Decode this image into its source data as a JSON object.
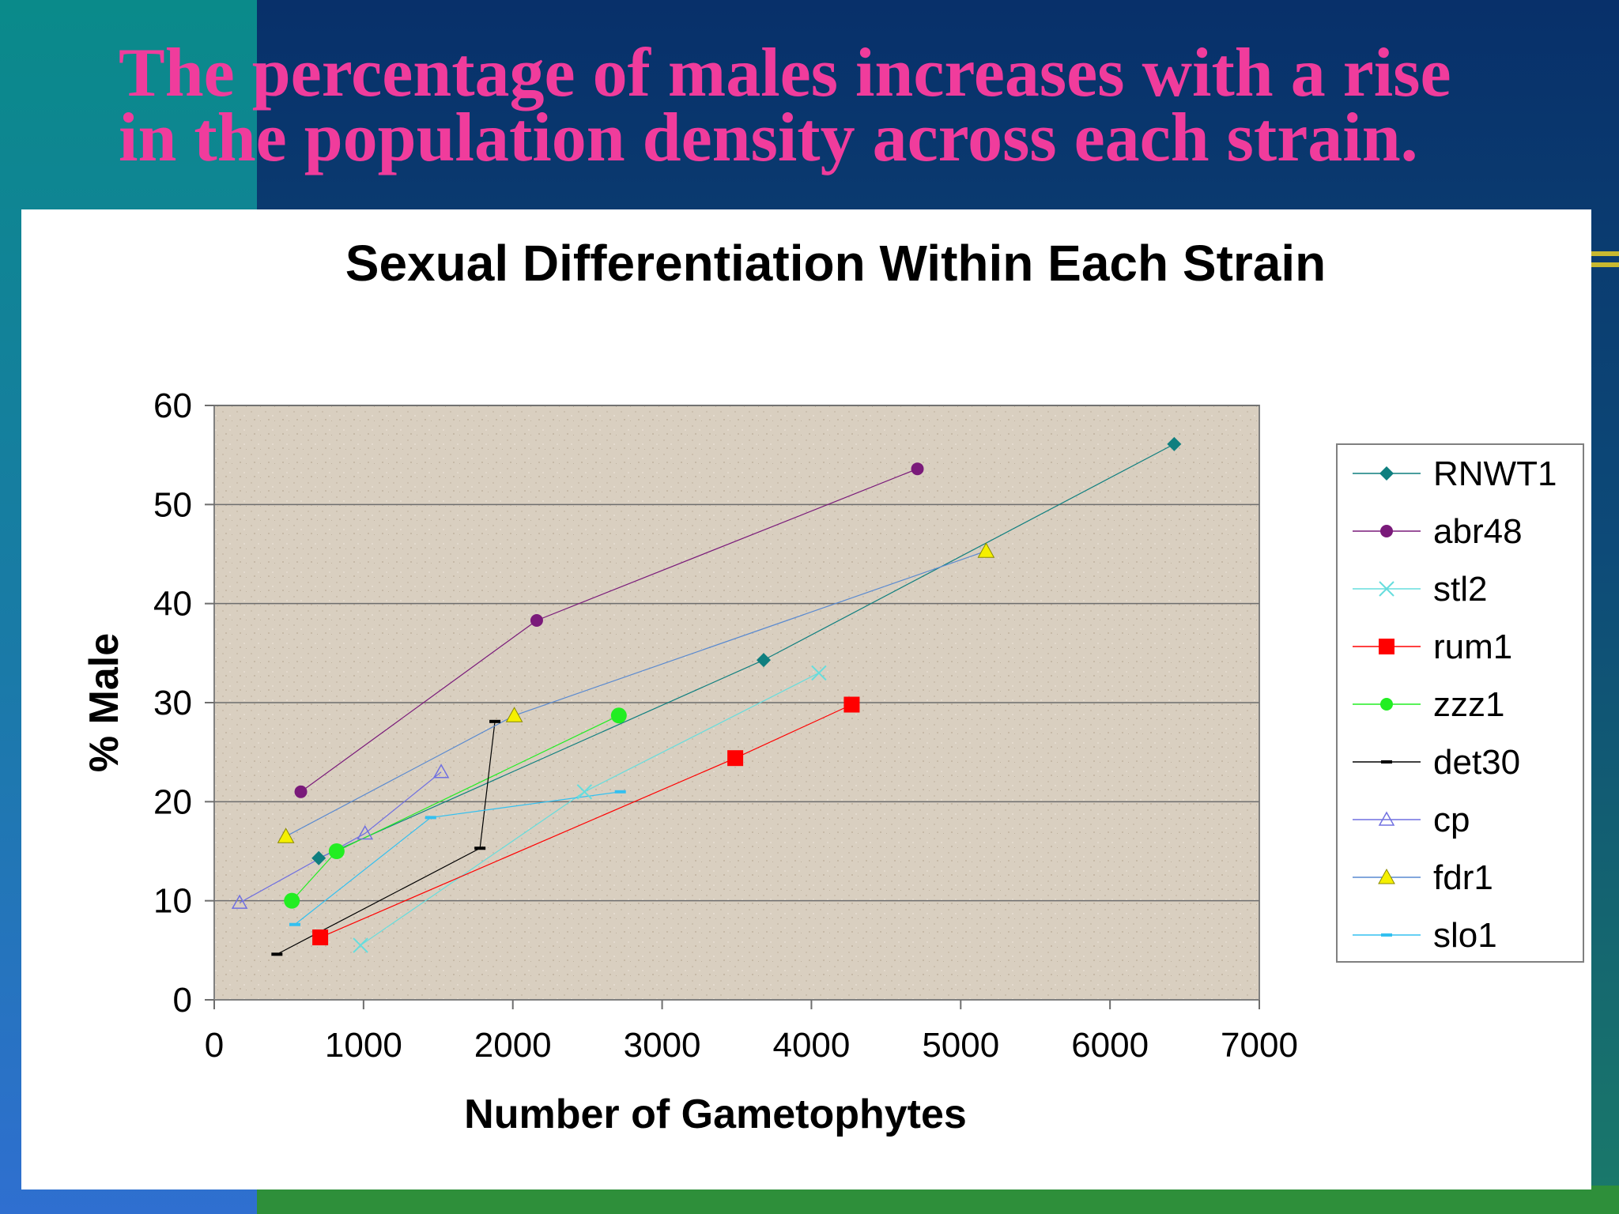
{
  "slide": {
    "title_lines": [
      "The percentage of males increases with a rise",
      "in the population density across each strain."
    ],
    "colors": {
      "title": "#f03c9c",
      "bg_dark_blue": "#0d3a6e",
      "bg_teal": "#0a8a8a",
      "bg_blue": "#2f6fd0",
      "bg_green": "#2e8f3a",
      "plot_area": "#d9cfc0"
    }
  },
  "chart_data": {
    "type": "scatter",
    "title": "Sexual Differentiation Within Each Strain",
    "xlabel": "Number of Gametophytes",
    "ylabel": "% Male",
    "xlim": [
      0,
      7000
    ],
    "ylim": [
      0,
      60
    ],
    "xticks": [
      0,
      1000,
      2000,
      3000,
      4000,
      5000,
      6000,
      7000
    ],
    "yticks": [
      0,
      10,
      20,
      30,
      40,
      50,
      60
    ],
    "grid": "horizontal",
    "legend_position": "right",
    "series": [
      {
        "name": "RNWT1",
        "color": "#0f7f7f",
        "marker": "diamond",
        "points": [
          [
            700,
            14.3
          ],
          [
            3680,
            34.3
          ],
          [
            6430,
            56.1
          ]
        ]
      },
      {
        "name": "abr48",
        "color": "#7a1a7a",
        "marker": "circle",
        "points": [
          [
            580,
            21.0
          ],
          [
            2160,
            38.3
          ],
          [
            4710,
            53.6
          ]
        ]
      },
      {
        "name": "stl2",
        "color": "#66dddd",
        "marker": "x",
        "points": [
          [
            980,
            5.5
          ],
          [
            2480,
            21.0
          ],
          [
            4050,
            33.0
          ]
        ]
      },
      {
        "name": "rum1",
        "color": "#ff0000",
        "marker": "square",
        "points": [
          [
            710,
            6.3
          ],
          [
            3490,
            24.4
          ],
          [
            4270,
            29.8
          ]
        ]
      },
      {
        "name": "zzz1",
        "color": "#22ee22",
        "marker": "circle",
        "points": [
          [
            520,
            10.0
          ],
          [
            820,
            15.0
          ],
          [
            2710,
            28.7
          ]
        ]
      },
      {
        "name": "det30",
        "color": "#000000",
        "marker": "dash",
        "points": [
          [
            420,
            4.6
          ],
          [
            1780,
            15.3
          ],
          [
            1880,
            28.1
          ]
        ]
      },
      {
        "name": "cp",
        "color": "#7070e0",
        "marker": "triangle-open",
        "points": [
          [
            170,
            9.8
          ],
          [
            1010,
            16.8
          ],
          [
            1520,
            23.0
          ]
        ]
      },
      {
        "name": "fdr1",
        "color": "#5a8ad0",
        "marker": "triangle-filled",
        "points": [
          [
            480,
            16.5
          ],
          [
            2010,
            28.7
          ],
          [
            5170,
            45.3
          ]
        ]
      },
      {
        "name": "slo1",
        "color": "#33c0f0",
        "marker": "dash",
        "points": [
          [
            540,
            7.6
          ],
          [
            1450,
            18.4
          ],
          [
            2720,
            21.0
          ]
        ]
      }
    ]
  }
}
